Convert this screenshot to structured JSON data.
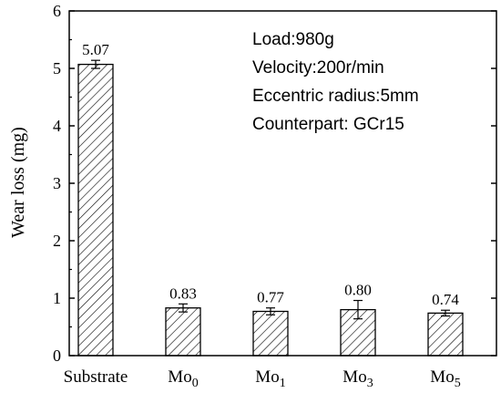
{
  "chart_data": {
    "type": "bar",
    "ylabel": "Wear loss (mg)",
    "xlabel": "",
    "ylim": [
      0,
      6
    ],
    "yticks": [
      "0",
      "1",
      "2",
      "3",
      "4",
      "5",
      "6"
    ],
    "grid": false,
    "bar_pattern": "diagonal-hatch",
    "categories": [
      {
        "base": "Substrate",
        "sub": ""
      },
      {
        "base": "Mo",
        "sub": "0"
      },
      {
        "base": "Mo",
        "sub": "1"
      },
      {
        "base": "Mo",
        "sub": "3"
      },
      {
        "base": "Mo",
        "sub": "5"
      }
    ],
    "values": [
      5.07,
      0.83,
      0.77,
      0.8,
      0.74
    ],
    "value_labels": [
      "5.07",
      "0.83",
      "0.77",
      "0.80",
      "0.74"
    ],
    "error": [
      0.07,
      0.07,
      0.06,
      0.16,
      0.05
    ],
    "annotations": [
      "Load:980g",
      "Velocity:200r/min",
      "Eccentric radius:5mm",
      "Counterpart: GCr15"
    ]
  }
}
